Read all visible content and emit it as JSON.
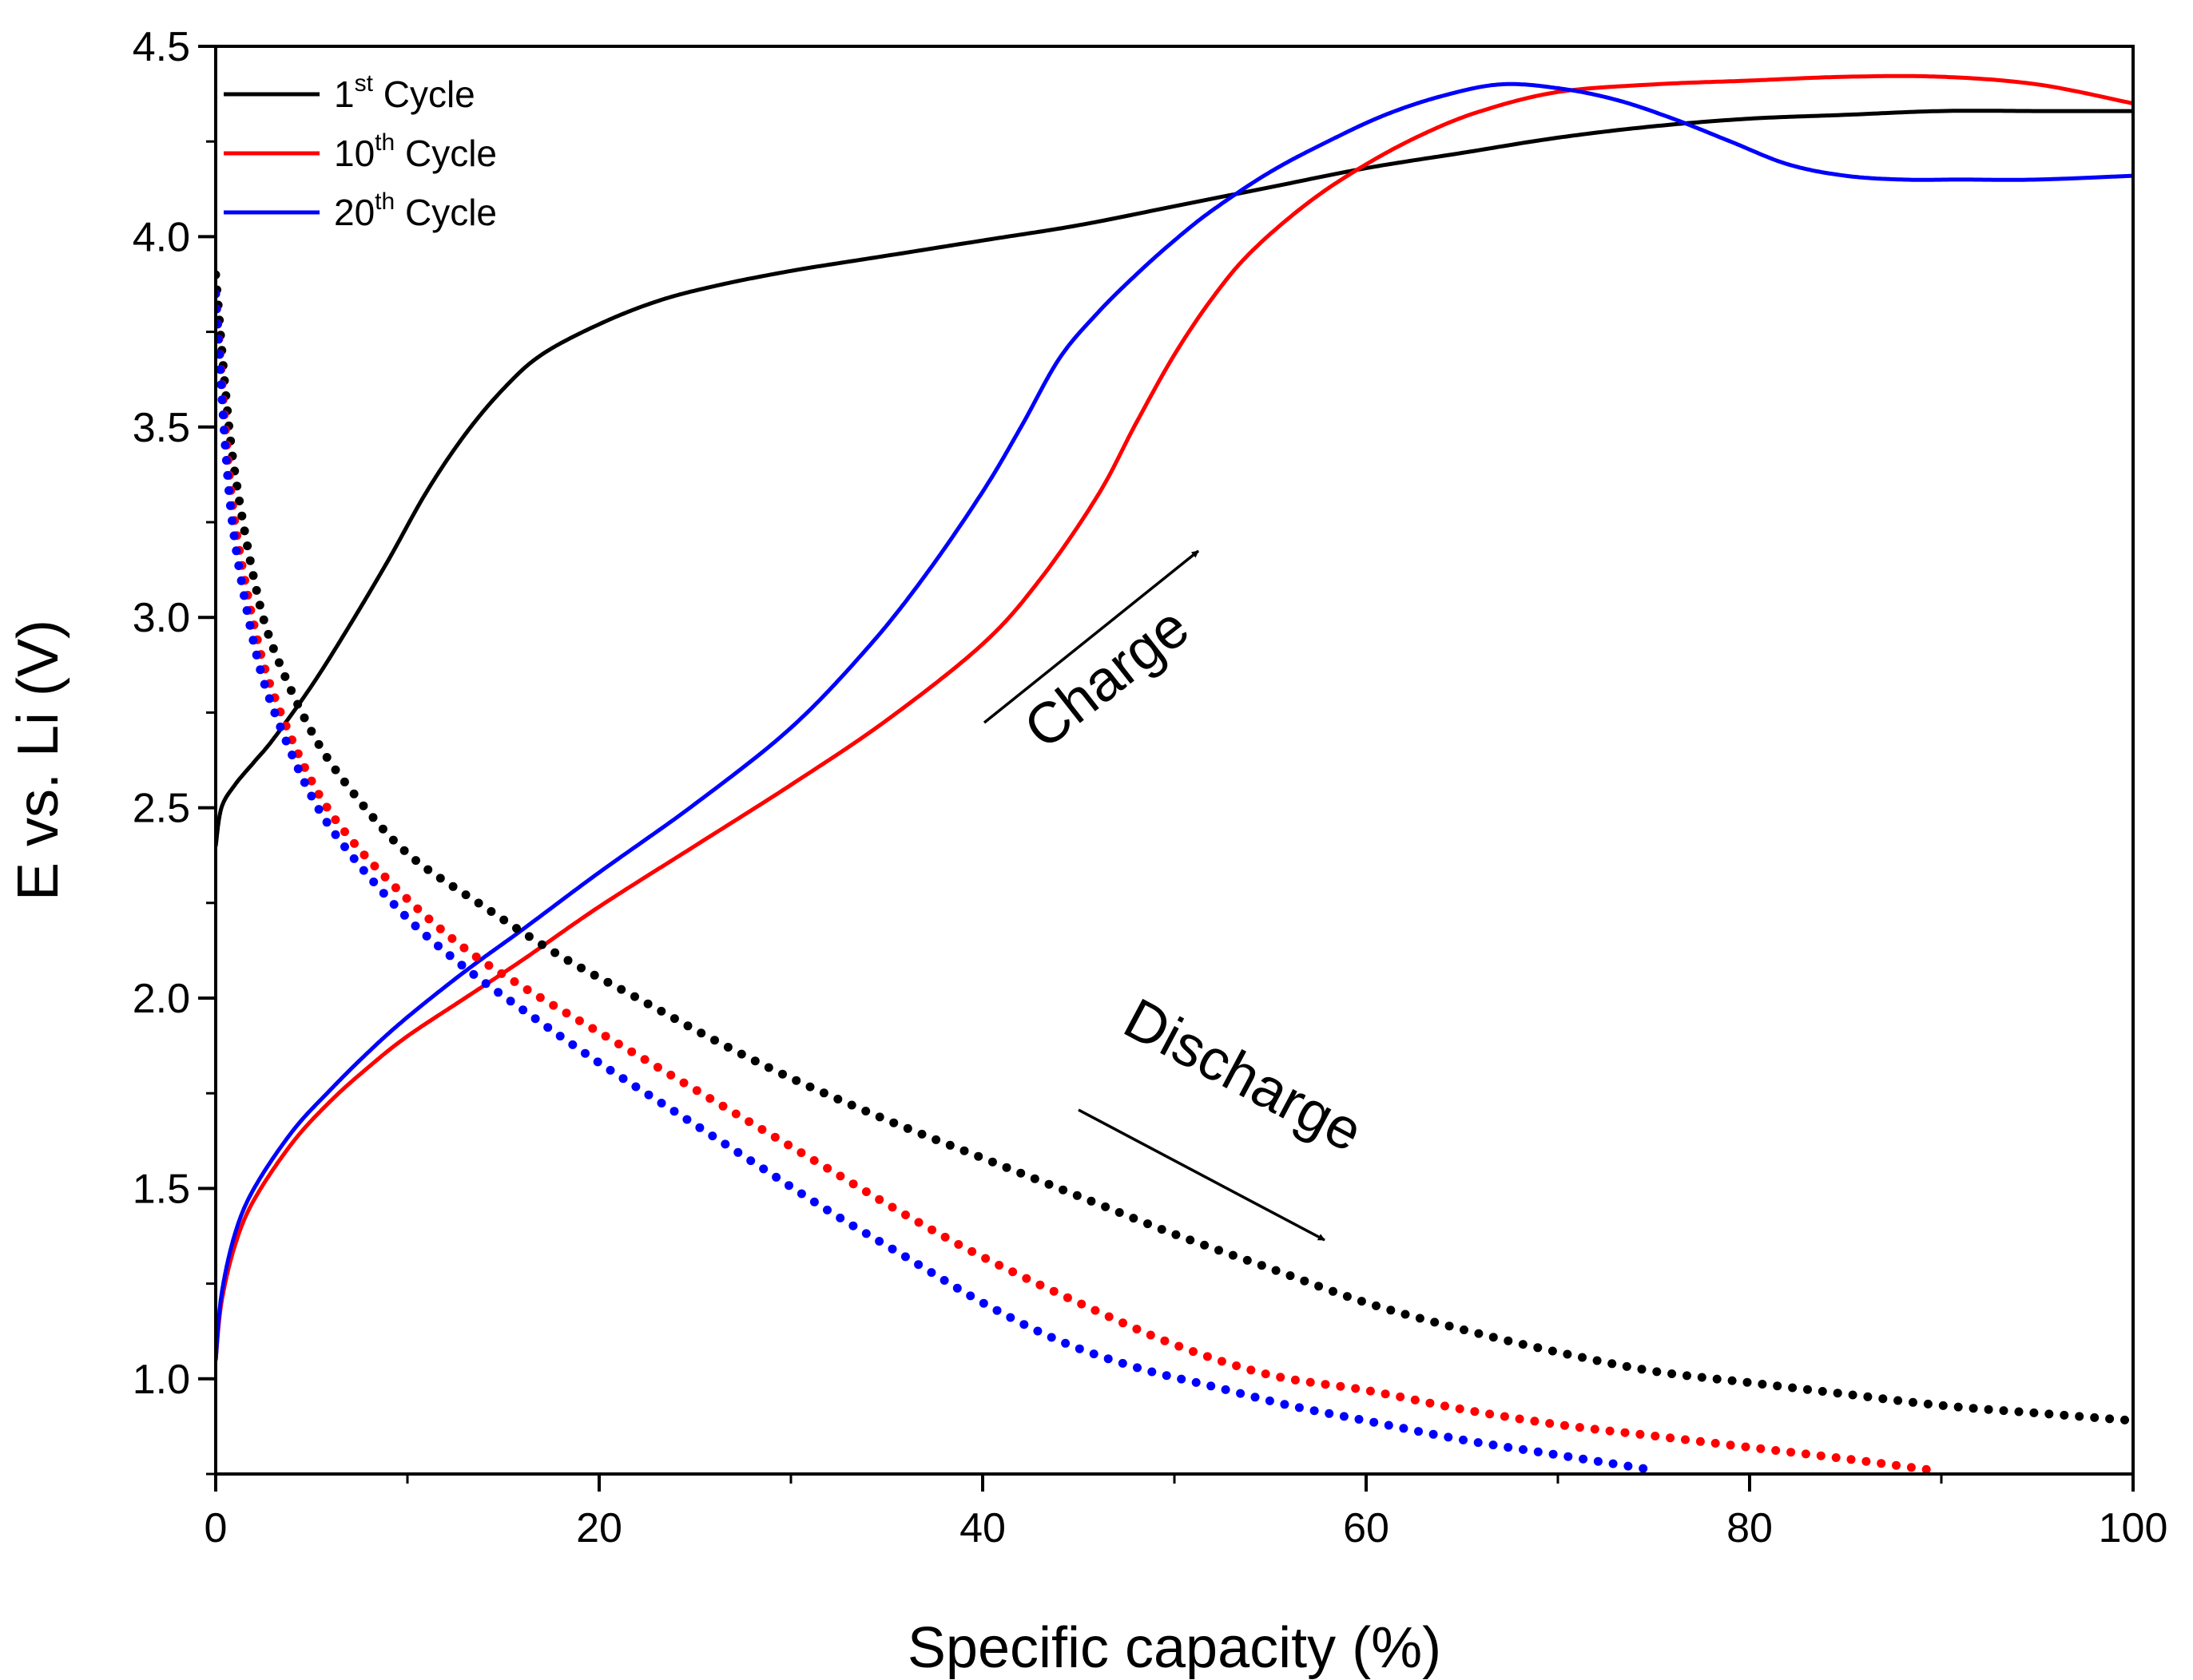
{
  "chart_data": {
    "type": "line",
    "title": "",
    "xlabel": "Specific capacity (%)",
    "ylabel": "E vs. Li (V)",
    "xlim": [
      0,
      100
    ],
    "ylim": [
      0.75,
      4.5
    ],
    "xticks": [
      0,
      20,
      40,
      60,
      80,
      100
    ],
    "xtick_labels": [
      "0",
      "20",
      "40",
      "60",
      "80",
      "100"
    ],
    "yticks": [
      1.0,
      1.5,
      2.0,
      2.5,
      3.0,
      3.5,
      4.0,
      4.5
    ],
    "ytick_labels": [
      "1.0",
      "1.5",
      "2.0",
      "2.5",
      "3.0",
      "3.5",
      "4.0",
      "4.5"
    ],
    "legend_position": "top-left",
    "legend": [
      {
        "base": "1",
        "sup": "st",
        "rest": " Cycle",
        "color": "#000000"
      },
      {
        "base": "10",
        "sup": "th",
        "rest": " Cycle",
        "color": "#ff0000"
      },
      {
        "base": "20",
        "sup": "th",
        "rest": " Cycle",
        "color": "#0000ff"
      }
    ],
    "annotations": [
      {
        "text": "Charge",
        "angle_deg": -38
      },
      {
        "text": "Discharge",
        "angle_deg": 28
      }
    ],
    "series": [
      {
        "name": "1st Cycle charge",
        "color": "#000000",
        "style": "solid",
        "x": [
          0,
          0.3,
          1,
          2,
          3,
          5,
          7,
          9,
          11,
          13,
          15,
          17,
          20,
          23,
          26,
          30,
          35,
          40,
          45,
          50,
          55,
          60,
          65,
          70,
          75,
          80,
          85,
          90,
          95,
          100
        ],
        "y": [
          2.4,
          2.5,
          2.56,
          2.62,
          2.68,
          2.82,
          2.98,
          3.15,
          3.33,
          3.48,
          3.6,
          3.69,
          3.77,
          3.83,
          3.87,
          3.91,
          3.95,
          3.99,
          4.03,
          4.08,
          4.13,
          4.18,
          4.22,
          4.26,
          4.29,
          4.31,
          4.32,
          4.33,
          4.33,
          4.33
        ]
      },
      {
        "name": "10th Cycle charge",
        "color": "#ff0000",
        "style": "solid",
        "x": [
          0,
          0.3,
          1,
          2,
          4,
          6,
          8,
          10,
          13,
          16,
          20,
          25,
          30,
          35,
          40,
          43,
          46,
          48,
          50,
          52,
          54,
          57,
          60,
          63,
          66,
          70,
          75,
          80,
          85,
          90,
          95,
          100
        ],
        "y": [
          1.05,
          1.2,
          1.35,
          1.47,
          1.62,
          1.73,
          1.82,
          1.9,
          2.0,
          2.1,
          2.24,
          2.4,
          2.56,
          2.73,
          2.93,
          3.1,
          3.32,
          3.51,
          3.69,
          3.84,
          3.96,
          4.09,
          4.19,
          4.27,
          4.33,
          4.38,
          4.4,
          4.41,
          4.42,
          4.42,
          4.4,
          4.35
        ]
      },
      {
        "name": "20th Cycle charge",
        "color": "#0000ff",
        "style": "solid",
        "x": [
          0,
          0.3,
          1,
          2,
          4,
          6,
          8,
          10,
          13,
          16,
          20,
          25,
          30,
          34,
          37,
          40,
          42,
          44,
          46,
          48,
          50,
          52,
          55,
          58,
          61,
          64,
          67,
          70,
          73,
          76,
          79,
          82,
          85,
          88,
          91,
          95,
          100
        ],
        "y": [
          1.05,
          1.22,
          1.38,
          1.5,
          1.65,
          1.76,
          1.86,
          1.95,
          2.07,
          2.18,
          2.33,
          2.51,
          2.71,
          2.92,
          3.11,
          3.33,
          3.5,
          3.68,
          3.8,
          3.9,
          3.99,
          4.07,
          4.17,
          4.25,
          4.32,
          4.37,
          4.4,
          4.39,
          4.36,
          4.31,
          4.25,
          4.19,
          4.16,
          4.15,
          4.15,
          4.15,
          4.16
        ]
      },
      {
        "name": "1st Cycle discharge",
        "color": "#000000",
        "style": "dotted",
        "x": [
          0,
          0.5,
          1,
          2,
          3,
          5,
          7,
          10,
          14,
          18,
          22,
          26,
          30,
          35,
          40,
          45,
          50,
          55,
          60,
          65,
          70,
          75,
          80,
          85,
          90,
          95,
          100
        ],
        "y": [
          3.9,
          3.6,
          3.38,
          3.1,
          2.92,
          2.7,
          2.55,
          2.38,
          2.24,
          2.11,
          2.0,
          1.89,
          1.79,
          1.68,
          1.58,
          1.48,
          1.38,
          1.29,
          1.2,
          1.13,
          1.07,
          1.02,
          0.99,
          0.96,
          0.93,
          0.91,
          0.89
        ]
      },
      {
        "name": "10th Cycle discharge",
        "color": "#ff0000",
        "style": "dotted",
        "x": [
          0,
          0.5,
          1,
          2,
          3,
          5,
          7,
          10,
          13,
          16,
          20,
          24,
          28,
          32,
          36,
          40,
          45,
          50,
          55,
          60,
          65,
          70,
          75,
          80,
          85,
          89.5
        ],
        "y": [
          3.85,
          3.5,
          3.25,
          2.98,
          2.8,
          2.57,
          2.42,
          2.26,
          2.13,
          2.03,
          1.91,
          1.79,
          1.67,
          1.55,
          1.43,
          1.32,
          1.2,
          1.09,
          1.01,
          0.97,
          0.92,
          0.88,
          0.85,
          0.82,
          0.79,
          0.76
        ]
      },
      {
        "name": "20th Cycle discharge",
        "color": "#0000ff",
        "style": "dotted",
        "x": [
          0,
          0.5,
          1,
          2,
          3,
          5,
          7,
          10,
          13,
          16,
          20,
          24,
          28,
          32,
          36,
          40,
          44,
          48,
          52,
          56,
          60,
          65,
          70,
          75
        ],
        "y": [
          3.85,
          3.45,
          3.2,
          2.93,
          2.76,
          2.53,
          2.38,
          2.21,
          2.08,
          1.97,
          1.83,
          1.7,
          1.57,
          1.44,
          1.32,
          1.2,
          1.1,
          1.03,
          0.98,
          0.93,
          0.89,
          0.84,
          0.8,
          0.76
        ]
      }
    ]
  }
}
